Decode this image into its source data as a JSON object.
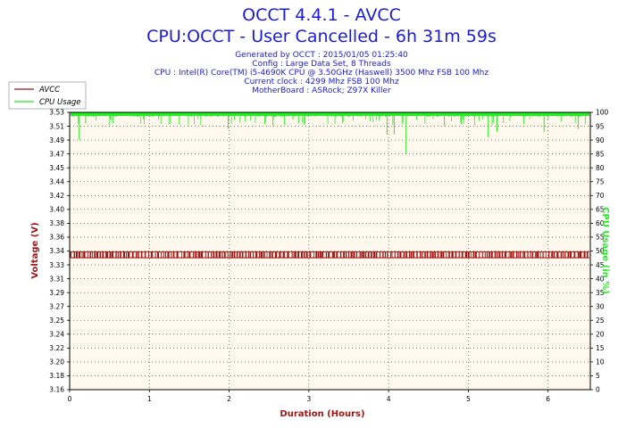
{
  "header": {
    "title": "OCCT 4.4.1 - AVCC",
    "subtitle": "CPU:OCCT - User Cancelled - 6h 31m 59s",
    "info_lines": [
      "Generated by OCCT : 2015/01/05 01:25:40",
      "Config : Large Data Set, 8 Threads",
      "CPU : Intel(R) Core(TM) i5-4690K CPU @ 3.50GHz (Haswell) 3500 Mhz FSB 100 Mhz",
      "Current clock : 4299 Mhz FSB 100 Mhz",
      "MotherBoard : ASRock; Z97X Killer"
    ]
  },
  "chart_data": {
    "type": "line",
    "xlabel": "Duration (Hours)",
    "ylabel": "Voltage (V)",
    "y2label": "CPU Usage (in %)",
    "xlim": [
      0,
      6.53
    ],
    "ylim": [
      3.16,
      3.53
    ],
    "y2lim": [
      0,
      100
    ],
    "x_ticks": [
      "0",
      "1",
      "2",
      "3",
      "4",
      "5",
      "6"
    ],
    "y_ticks": [
      "3.53",
      "3.51",
      "3.49",
      "3.47",
      "3.45",
      "3.44",
      "3.42",
      "3.40",
      "3.38",
      "3.36",
      "3.34",
      "3.33",
      "3.31",
      "3.29",
      "3.27",
      "3.25",
      "3.24",
      "3.22",
      "3.20",
      "3.18",
      "3.16"
    ],
    "y2_ticks": [
      "100",
      "95",
      "90",
      "85",
      "80",
      "75",
      "70",
      "65",
      "60",
      "55",
      "50",
      "45",
      "40",
      "35",
      "30",
      "25",
      "20",
      "15",
      "10",
      "5",
      "0"
    ],
    "grid": true,
    "legend_position": "top-left",
    "series": [
      {
        "name": "AVCC",
        "axis": "left",
        "color": "#a31515",
        "min": 3.336,
        "max": 3.344,
        "typical": 3.336,
        "pattern": "alternates between 3.336 V and 3.344 V throughout the run"
      },
      {
        "name": "CPU Usage",
        "axis": "right",
        "color": "#22ee22",
        "typical": 100,
        "dips": [
          {
            "x": 0.12,
            "y": 90
          },
          {
            "x": 0.2,
            "y": 96
          },
          {
            "x": 1.99,
            "y": 94
          },
          {
            "x": 2.55,
            "y": 95
          },
          {
            "x": 2.95,
            "y": 96
          },
          {
            "x": 3.98,
            "y": 92
          },
          {
            "x": 4.07,
            "y": 92
          },
          {
            "x": 4.22,
            "y": 85
          },
          {
            "x": 4.7,
            "y": 95
          },
          {
            "x": 5.25,
            "y": 91
          },
          {
            "x": 5.36,
            "y": 93
          },
          {
            "x": 5.95,
            "y": 93
          },
          {
            "x": 6.38,
            "y": 94
          }
        ]
      }
    ]
  },
  "colors": {
    "plot_bg": "#fff8ec",
    "title": "#1b1be0",
    "voltage_axis": "#a31515",
    "usage_axis": "#22ee22"
  }
}
